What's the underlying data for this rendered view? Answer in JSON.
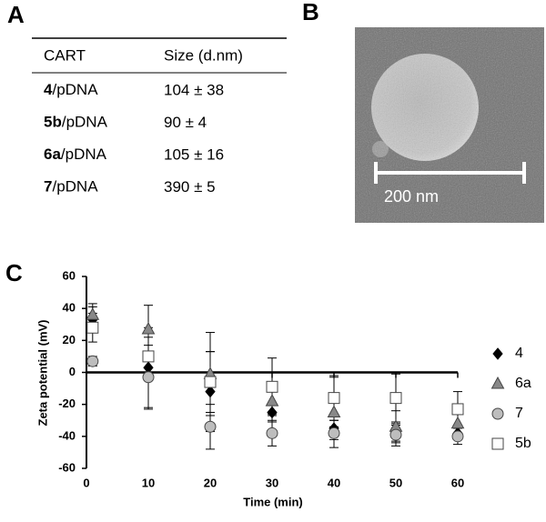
{
  "panel_a": {
    "label": "A",
    "table": {
      "header": [
        "CART",
        "Size (d.nm)"
      ],
      "rows": [
        [
          "4",
          "/pDNA",
          "104 ± 38"
        ],
        [
          "5b",
          "/pDNA",
          "90 ± 4"
        ],
        [
          "6a",
          "/pDNA",
          "105 ± 16"
        ],
        [
          "7",
          "/pDNA",
          "390 ± 5"
        ]
      ]
    }
  },
  "panel_b": {
    "label": "B",
    "scale_bar": "200 nm"
  },
  "chart_data": {
    "type": "scatter",
    "panel_label": "C",
    "x_label": "Time (min)",
    "y_label": "Zeta potential (mV)",
    "x": [
      1,
      10,
      20,
      30,
      40,
      50,
      60
    ],
    "xlim": [
      0,
      60
    ],
    "xticks": [
      0,
      10,
      20,
      30,
      40,
      50,
      60
    ],
    "ylim": [
      -60,
      60
    ],
    "yticks": [
      -60,
      -40,
      -20,
      0,
      20,
      40,
      60
    ],
    "series": [
      {
        "name": "4",
        "marker": "diamond",
        "color": "#000000",
        "values": [
          33,
          3,
          -12,
          -25,
          -35,
          -38,
          -38
        ],
        "errors": [
          8,
          25,
          25,
          6,
          5,
          5,
          4
        ]
      },
      {
        "name": "6a",
        "marker": "triangle",
        "color": "#888888",
        "values": [
          36,
          27,
          -1,
          -18,
          -25,
          -34,
          -32
        ],
        "errors": [
          7,
          15,
          26,
          8,
          22,
          10,
          6
        ]
      },
      {
        "name": "7",
        "marker": "circle",
        "color": "#bdbdbd",
        "values": [
          7,
          -3,
          -34,
          -38,
          -38,
          -39,
          -40
        ],
        "errors": [
          3,
          20,
          14,
          8,
          4,
          7,
          5
        ]
      },
      {
        "name": "5b",
        "marker": "square",
        "color": "#ffffff",
        "values": [
          28,
          10,
          -6,
          -9,
          -16,
          -16,
          -23
        ],
        "errors": [
          9,
          12,
          19,
          18,
          14,
          15,
          11
        ]
      }
    ]
  }
}
